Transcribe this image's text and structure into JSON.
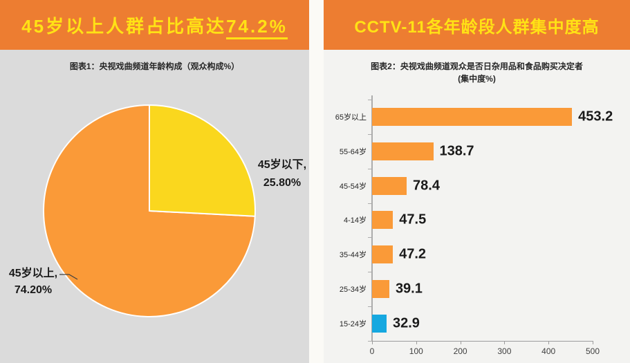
{
  "colors": {
    "header_bg": "#ED7D31",
    "headline_text": "#FFE215",
    "orange_series": "#FA9A38",
    "yellow_slice": "#FAD71E",
    "blue_bar": "#16A8E0",
    "left_body_bg": "#DBDBDB",
    "right_body_bg": "#F3F3F1",
    "value_text": "#1A1A1A",
    "axis": "#9C9C9C"
  },
  "left_panel": {
    "header_prefix": "45岁以上人群占比高达",
    "header_highlight": "74.2%",
    "chart_title": "图表1：央视戏曲频道年龄构成（观众构成%）"
  },
  "right_panel": {
    "header_text": "CCTV-11各年龄段人群集中度高",
    "chart_title_line1": "图表2：央视戏曲频道观众是否日杂用品和食品购买决定者",
    "chart_title_line2": "(集中度%)"
  },
  "chart_data": [
    {
      "type": "pie",
      "title": "图表1：央视戏曲频道年龄构成（观众构成%）",
      "start_angle_deg": -90,
      "direction": "clockwise",
      "slices": [
        {
          "label": "45岁以下",
          "value": 25.8,
          "display_label": "45岁以下,",
          "display_value": "25.80%",
          "color": "#FAD71E"
        },
        {
          "label": "45岁以上",
          "value": 74.2,
          "display_label": "45岁以上,",
          "display_value": "74.20%",
          "color": "#FA9A38"
        }
      ]
    },
    {
      "type": "bar",
      "orientation": "horizontal",
      "title": "图表2：央视戏曲频道观众是否日杂用品和食品购买决定者（集中度%）",
      "categories": [
        "65岁以上",
        "55-64岁",
        "45-54岁",
        "4-14岁",
        "35-44岁",
        "25-34岁",
        "15-24岁"
      ],
      "values": [
        453.2,
        138.7,
        78.4,
        47.5,
        47.2,
        39.1,
        32.9
      ],
      "value_labels": [
        "453.2",
        "138.7",
        "78.4",
        "47.5",
        "47.2",
        "39.1",
        "32.9"
      ],
      "bar_colors": [
        "#FA9A38",
        "#FA9A38",
        "#FA9A38",
        "#FA9A38",
        "#FA9A38",
        "#FA9A38",
        "#16A8E0"
      ],
      "x_ticks": [
        0,
        100,
        200,
        300,
        400,
        500
      ],
      "xlim": [
        0,
        500
      ],
      "grid": false,
      "legend": false
    }
  ]
}
